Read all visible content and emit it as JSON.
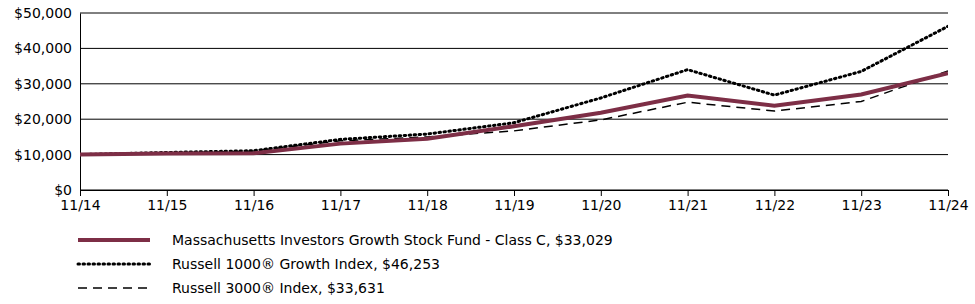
{
  "chart_data": {
    "type": "line",
    "categories": [
      "11/14",
      "11/15",
      "11/16",
      "11/17",
      "11/18",
      "11/19",
      "11/20",
      "11/21",
      "11/22",
      "11/23",
      "11/24"
    ],
    "series": [
      {
        "name": "Massachusetts Investors Growth Stock Fund - Class C, $33,029",
        "color": "#7d2e46",
        "line_style": "solid",
        "values": [
          10000,
          10300,
          10400,
          13100,
          14500,
          18000,
          21800,
          26700,
          23800,
          27000,
          33029
        ]
      },
      {
        "name": "Russell 1000® Growth Index, $46,253",
        "color": "#000000",
        "line_style": "dotted",
        "values": [
          10000,
          10600,
          11100,
          14300,
          15800,
          19000,
          26000,
          34000,
          26800,
          33500,
          46253
        ]
      },
      {
        "name": "Russell 3000® Index, $33,631",
        "color": "#000000",
        "line_style": "dashed",
        "values": [
          10000,
          10400,
          11000,
          13900,
          15000,
          16700,
          19800,
          24800,
          22300,
          25000,
          33631
        ]
      }
    ],
    "ylim": [
      0,
      50000
    ],
    "yticks": [
      {
        "value": 0,
        "label": "$0"
      },
      {
        "value": 10000,
        "label": "$10,000"
      },
      {
        "value": 20000,
        "label": "$20,000"
      },
      {
        "value": 30000,
        "label": "$30,000"
      },
      {
        "value": 40000,
        "label": "$40,000"
      },
      {
        "value": 50000,
        "label": "$50,000"
      }
    ],
    "grid": true,
    "legend": "bottom"
  }
}
